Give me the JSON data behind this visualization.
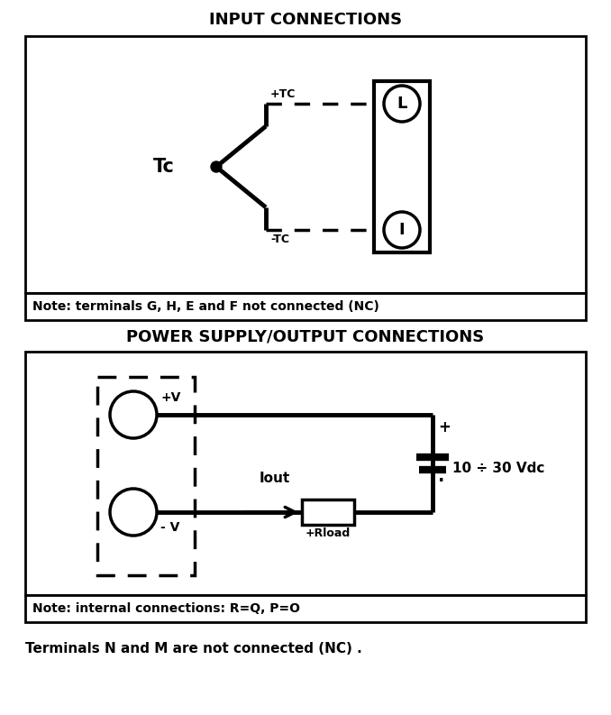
{
  "title1": "INPUT CONNECTIONS",
  "title2": "POWER SUPPLY/OUTPUT CONNECTIONS",
  "note1": "Note: terminals G, H, E and F not connected (NC)",
  "note2": "Note: internal connections: R=Q, P=O",
  "note3": "Terminals N and M are not connected (NC) .",
  "bg_color": "#ffffff",
  "line_color": "#000000",
  "vdc_label": "10 ÷ 30 Vdc",
  "iout_label": "Iout",
  "rload_label": "Rload",
  "tc_label": "Tc",
  "plus_tc": "+TC",
  "minus_tc": "-TC",
  "plus_v": "+V",
  "minus_v": "- V",
  "plus_sign": "+",
  "minus_sign": "·"
}
